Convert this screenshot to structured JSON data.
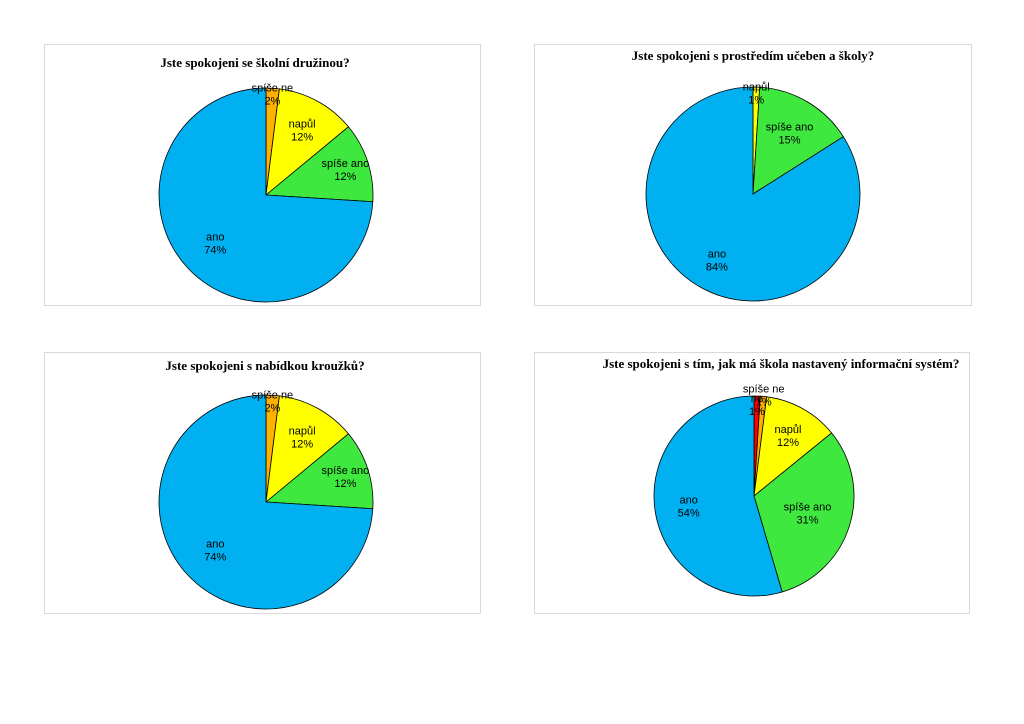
{
  "chart_data": [
    {
      "type": "pie",
      "title": "Jste spokojeni se školní družinou?",
      "categories": [
        "ano",
        "spíše ano",
        "napůl",
        "spíše ne"
      ],
      "values": [
        74,
        12,
        12,
        2
      ],
      "value_labels": [
        "74%",
        "12%",
        "12%",
        "2%"
      ],
      "colors": [
        "#00b0f0",
        "#3ee83e",
        "#ffff00",
        "#ffb000"
      ],
      "legend": "none"
    },
    {
      "type": "pie",
      "title": "Jste spokojeni s prostředím učeben a školy?",
      "categories": [
        "ano",
        "spíše ano",
        "napůl"
      ],
      "values": [
        84,
        15,
        1
      ],
      "value_labels": [
        "84%",
        "15%",
        "1%"
      ],
      "colors": [
        "#00b0f0",
        "#3ee83e",
        "#ffff00"
      ],
      "legend": "none"
    },
    {
      "type": "pie",
      "title": "Jste spokojeni s nabídkou kroužků?",
      "categories": [
        "ano",
        "spíše ano",
        "napůl",
        "spíše ne"
      ],
      "values": [
        74,
        12,
        12,
        2
      ],
      "value_labels": [
        "74%",
        "12%",
        "12%",
        "2%"
      ],
      "colors": [
        "#00b0f0",
        "#3ee83e",
        "#ffff00",
        "#ffb000"
      ],
      "legend": "none"
    },
    {
      "type": "pie",
      "title": "Jste spokojeni s tím, jak má škola nastavený informační systém?",
      "categories": [
        "ano",
        "spíše ano",
        "napůl",
        "spíše ne",
        "ne"
      ],
      "values": [
        54,
        31,
        12,
        1,
        1
      ],
      "value_labels": [
        "54%",
        "31%",
        "12%",
        "1%",
        "1%"
      ],
      "colors": [
        "#00b0f0",
        "#3ee83e",
        "#ffff00",
        "#ffb000",
        "#ff0000"
      ],
      "legend": "none"
    }
  ]
}
